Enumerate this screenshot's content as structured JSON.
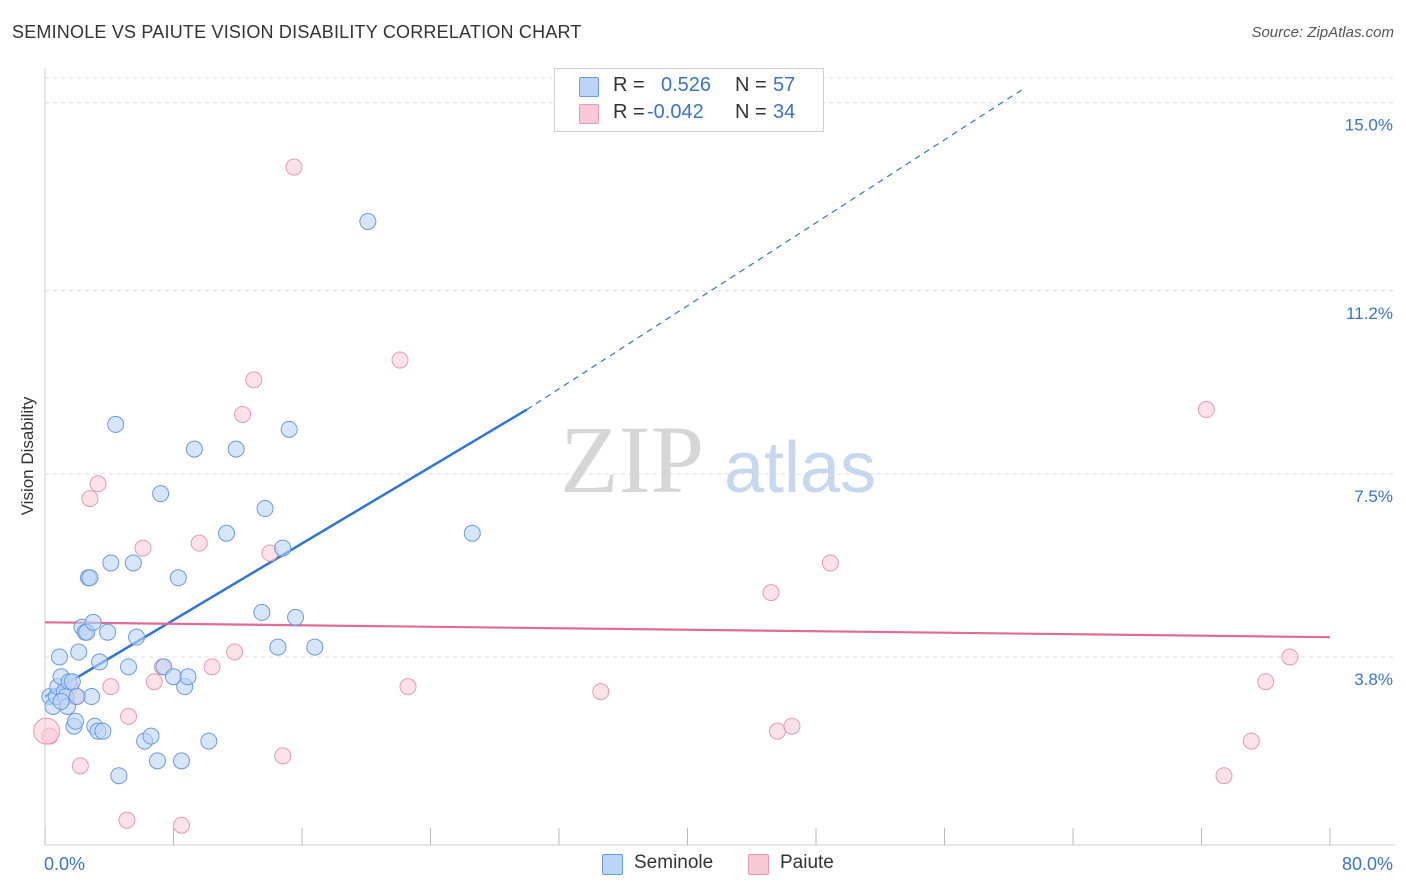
{
  "title": "SEMINOLE VS PAIUTE VISION DISABILITY CORRELATION CHART",
  "source": "Source: ZipAtlas.com",
  "watermark": {
    "zip": "ZIP",
    "atlas": "atlas"
  },
  "colors": {
    "blue_fill": "#bcd4f5",
    "blue_stroke": "#6a9be0",
    "blue_line": "#2f75d6",
    "pink_fill": "#f8c8d6",
    "pink_stroke": "#e89ab2",
    "pink_line": "#e06b94",
    "axis_text": "#3a74c9"
  },
  "legend": {
    "rows": [
      {
        "r_label": "R =",
        "r_value": "0.526",
        "n_label": "N =",
        "n_value": "57"
      },
      {
        "r_label": "R =",
        "r_value": "-0.042",
        "n_label": "N =",
        "n_value": "34"
      }
    ],
    "bottom": [
      "Seminole",
      "Paiute"
    ]
  },
  "chart_data": {
    "type": "scatter",
    "title": "SEMINOLE VS PAIUTE VISION DISABILITY CORRELATION CHART",
    "xlabel": "",
    "ylabel": "Vision Disability",
    "xlim": [
      0,
      80
    ],
    "ylim": [
      0,
      15.5
    ],
    "x_tick_labels": [
      "0.0%",
      "80.0%"
    ],
    "y_ticks": [
      3.8,
      7.5,
      11.2,
      15.0
    ],
    "y_tick_labels": [
      "3.8%",
      "7.5%",
      "11.2%",
      "15.0%"
    ],
    "series": [
      {
        "name": "Seminole",
        "r": 0.526,
        "n": 57,
        "trend": {
          "x0": 0,
          "y0": 3.0,
          "x1": 30,
          "y1": 8.8,
          "dash_to_x": 61,
          "dash_to_y": 15.3
        },
        "points": [
          [
            0.3,
            3.0
          ],
          [
            0.5,
            2.8
          ],
          [
            0.7,
            3.0
          ],
          [
            0.8,
            3.2
          ],
          [
            0.9,
            3.8
          ],
          [
            1.0,
            3.4
          ],
          [
            1.2,
            3.1
          ],
          [
            1.3,
            3.0
          ],
          [
            1.4,
            2.8
          ],
          [
            1.5,
            3.3
          ],
          [
            1.7,
            3.3
          ],
          [
            1.8,
            2.4
          ],
          [
            1.9,
            2.5
          ],
          [
            2.1,
            3.9
          ],
          [
            2.3,
            4.4
          ],
          [
            2.5,
            4.3
          ],
          [
            2.6,
            4.3
          ],
          [
            2.7,
            5.4
          ],
          [
            2.8,
            5.4
          ],
          [
            2.9,
            3.0
          ],
          [
            3.0,
            4.5
          ],
          [
            3.1,
            2.4
          ],
          [
            3.3,
            2.3
          ],
          [
            3.4,
            3.7
          ],
          [
            3.6,
            2.3
          ],
          [
            3.9,
            4.3
          ],
          [
            4.1,
            5.7
          ],
          [
            4.4,
            8.5
          ],
          [
            4.6,
            1.4
          ],
          [
            5.2,
            3.6
          ],
          [
            5.5,
            5.7
          ],
          [
            5.7,
            4.2
          ],
          [
            6.2,
            2.1
          ],
          [
            6.6,
            2.2
          ],
          [
            7.0,
            1.7
          ],
          [
            7.2,
            7.1
          ],
          [
            7.4,
            3.6
          ],
          [
            8.0,
            3.4
          ],
          [
            8.3,
            5.4
          ],
          [
            8.5,
            1.7
          ],
          [
            8.7,
            3.2
          ],
          [
            8.9,
            3.4
          ],
          [
            9.3,
            8.0
          ],
          [
            10.2,
            2.1
          ],
          [
            11.3,
            6.3
          ],
          [
            11.9,
            8.0
          ],
          [
            13.5,
            4.7
          ],
          [
            13.7,
            6.8
          ],
          [
            14.5,
            4.0
          ],
          [
            14.8,
            6.0
          ],
          [
            15.2,
            8.4
          ],
          [
            15.6,
            4.6
          ],
          [
            16.8,
            4.0
          ],
          [
            20.1,
            12.6
          ],
          [
            26.6,
            6.3
          ],
          [
            1.0,
            2.9
          ],
          [
            2.0,
            3.0
          ]
        ]
      },
      {
        "name": "Paiute",
        "r": -0.042,
        "n": 34,
        "trend": {
          "x0": 0,
          "y0": 4.5,
          "x1": 80,
          "y1": 4.2
        },
        "points": [
          [
            0.3,
            2.2
          ],
          [
            1.6,
            3.2
          ],
          [
            1.9,
            3.0
          ],
          [
            2.2,
            1.6
          ],
          [
            2.8,
            7.0
          ],
          [
            3.3,
            7.3
          ],
          [
            4.1,
            3.2
          ],
          [
            5.1,
            0.5
          ],
          [
            5.2,
            2.6
          ],
          [
            6.1,
            6.0
          ],
          [
            6.8,
            3.3
          ],
          [
            7.3,
            3.6
          ],
          [
            8.5,
            0.4
          ],
          [
            9.6,
            6.1
          ],
          [
            10.4,
            3.6
          ],
          [
            11.8,
            3.9
          ],
          [
            12.3,
            8.7
          ],
          [
            13.0,
            9.4
          ],
          [
            14.0,
            5.9
          ],
          [
            14.8,
            1.8
          ],
          [
            15.5,
            13.7
          ],
          [
            22.1,
            9.8
          ],
          [
            22.6,
            3.2
          ],
          [
            34.6,
            3.1
          ],
          [
            45.2,
            5.1
          ],
          [
            45.6,
            2.3
          ],
          [
            46.5,
            2.4
          ],
          [
            48.9,
            5.7
          ],
          [
            72.3,
            8.8
          ],
          [
            73.4,
            1.4
          ],
          [
            75.1,
            2.1
          ],
          [
            76.0,
            3.3
          ],
          [
            77.5,
            3.8
          ],
          [
            0.1,
            2.3
          ]
        ]
      }
    ]
  }
}
